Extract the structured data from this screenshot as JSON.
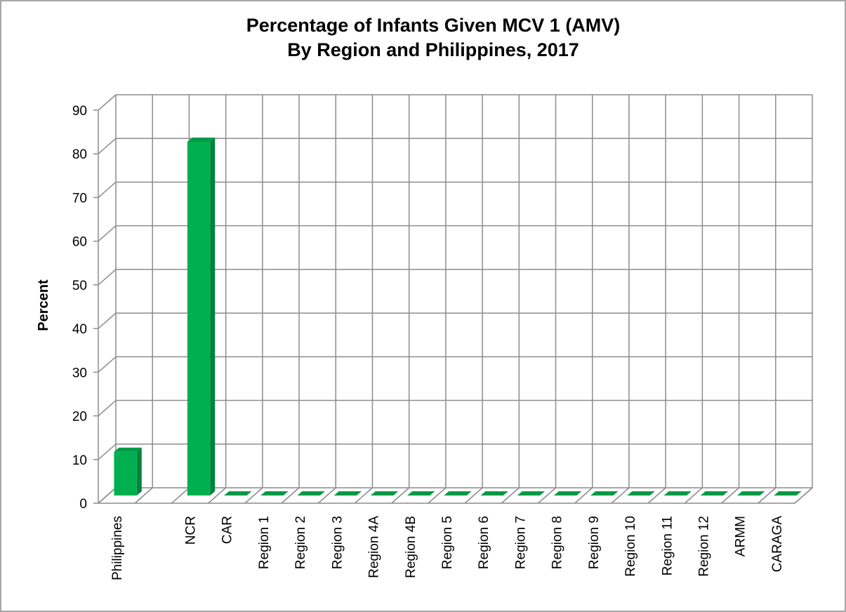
{
  "chart_data": {
    "type": "bar3d",
    "title": [
      "Percentage of Infants Given MCV 1 (AMV)",
      "By Region and Philippines, 2017"
    ],
    "y_label": "Percent",
    "categories": [
      "Philippines",
      null,
      "NCR",
      "CAR",
      "Region 1",
      "Region 2",
      "Region 3",
      "Region 4A",
      "Region 4B",
      "Region 5",
      "Region 6",
      "Region 7",
      "Region 8",
      "Region 9",
      "Region 10",
      "Region 11",
      "Region 12",
      "ARMM",
      "CARAGA"
    ],
    "values": [
      10,
      null,
      81,
      0,
      0,
      0,
      0,
      0,
      0,
      0,
      0,
      0,
      0,
      0,
      0,
      0,
      0,
      0,
      0
    ],
    "color": "#00b050",
    "ylim": [
      0,
      90
    ],
    "yticks": [
      0,
      10,
      20,
      30,
      40,
      50,
      60,
      70,
      80,
      90
    ],
    "grid": true
  }
}
